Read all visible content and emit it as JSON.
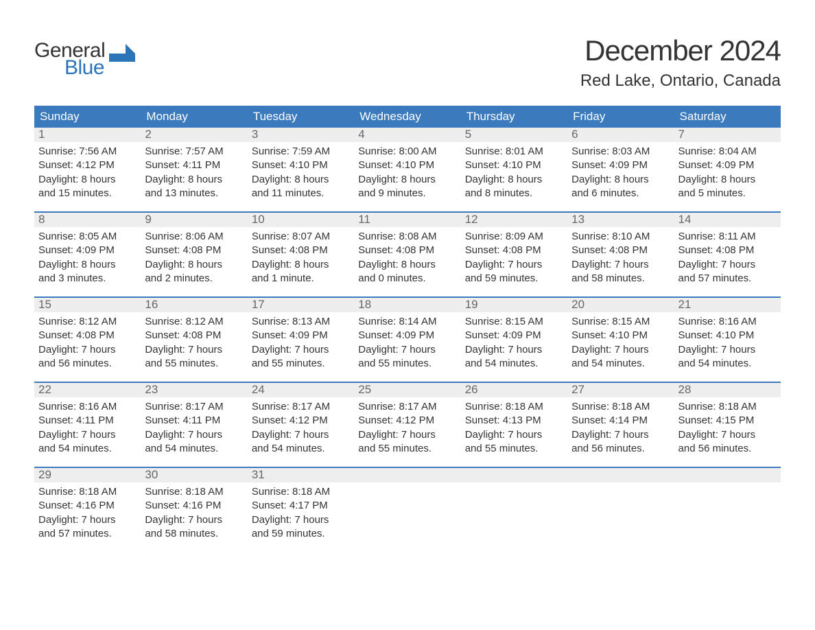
{
  "logo": {
    "general": "General",
    "blue": "Blue",
    "mark_color": "#2b74b8",
    "general_color": "#333333"
  },
  "title": "December 2024",
  "location": "Red Lake, Ontario, Canada",
  "colors": {
    "header_bg": "#3a7abd",
    "header_text": "#ffffff",
    "row_separator": "#3a7abd",
    "daynum_bg": "#eeeeee",
    "daynum_text": "#666666",
    "body_text": "#333333",
    "background": "#ffffff"
  },
  "typography": {
    "title_fontsize": 42,
    "location_fontsize": 24,
    "header_fontsize": 17,
    "daynum_fontsize": 17,
    "details_fontsize": 15,
    "font_family": "Arial"
  },
  "calendar": {
    "type": "table",
    "headers": [
      "Sunday",
      "Monday",
      "Tuesday",
      "Wednesday",
      "Thursday",
      "Friday",
      "Saturday"
    ],
    "weeks": [
      [
        {
          "day": "1",
          "sunrise": "Sunrise: 7:56 AM",
          "sunset": "Sunset: 4:12 PM",
          "daylight": "Daylight: 8 hours\nand 15 minutes."
        },
        {
          "day": "2",
          "sunrise": "Sunrise: 7:57 AM",
          "sunset": "Sunset: 4:11 PM",
          "daylight": "Daylight: 8 hours\nand 13 minutes."
        },
        {
          "day": "3",
          "sunrise": "Sunrise: 7:59 AM",
          "sunset": "Sunset: 4:10 PM",
          "daylight": "Daylight: 8 hours\nand 11 minutes."
        },
        {
          "day": "4",
          "sunrise": "Sunrise: 8:00 AM",
          "sunset": "Sunset: 4:10 PM",
          "daylight": "Daylight: 8 hours\nand 9 minutes."
        },
        {
          "day": "5",
          "sunrise": "Sunrise: 8:01 AM",
          "sunset": "Sunset: 4:10 PM",
          "daylight": "Daylight: 8 hours\nand 8 minutes."
        },
        {
          "day": "6",
          "sunrise": "Sunrise: 8:03 AM",
          "sunset": "Sunset: 4:09 PM",
          "daylight": "Daylight: 8 hours\nand 6 minutes."
        },
        {
          "day": "7",
          "sunrise": "Sunrise: 8:04 AM",
          "sunset": "Sunset: 4:09 PM",
          "daylight": "Daylight: 8 hours\nand 5 minutes."
        }
      ],
      [
        {
          "day": "8",
          "sunrise": "Sunrise: 8:05 AM",
          "sunset": "Sunset: 4:09 PM",
          "daylight": "Daylight: 8 hours\nand 3 minutes."
        },
        {
          "day": "9",
          "sunrise": "Sunrise: 8:06 AM",
          "sunset": "Sunset: 4:08 PM",
          "daylight": "Daylight: 8 hours\nand 2 minutes."
        },
        {
          "day": "10",
          "sunrise": "Sunrise: 8:07 AM",
          "sunset": "Sunset: 4:08 PM",
          "daylight": "Daylight: 8 hours\nand 1 minute."
        },
        {
          "day": "11",
          "sunrise": "Sunrise: 8:08 AM",
          "sunset": "Sunset: 4:08 PM",
          "daylight": "Daylight: 8 hours\nand 0 minutes."
        },
        {
          "day": "12",
          "sunrise": "Sunrise: 8:09 AM",
          "sunset": "Sunset: 4:08 PM",
          "daylight": "Daylight: 7 hours\nand 59 minutes."
        },
        {
          "day": "13",
          "sunrise": "Sunrise: 8:10 AM",
          "sunset": "Sunset: 4:08 PM",
          "daylight": "Daylight: 7 hours\nand 58 minutes."
        },
        {
          "day": "14",
          "sunrise": "Sunrise: 8:11 AM",
          "sunset": "Sunset: 4:08 PM",
          "daylight": "Daylight: 7 hours\nand 57 minutes."
        }
      ],
      [
        {
          "day": "15",
          "sunrise": "Sunrise: 8:12 AM",
          "sunset": "Sunset: 4:08 PM",
          "daylight": "Daylight: 7 hours\nand 56 minutes."
        },
        {
          "day": "16",
          "sunrise": "Sunrise: 8:12 AM",
          "sunset": "Sunset: 4:08 PM",
          "daylight": "Daylight: 7 hours\nand 55 minutes."
        },
        {
          "day": "17",
          "sunrise": "Sunrise: 8:13 AM",
          "sunset": "Sunset: 4:09 PM",
          "daylight": "Daylight: 7 hours\nand 55 minutes."
        },
        {
          "day": "18",
          "sunrise": "Sunrise: 8:14 AM",
          "sunset": "Sunset: 4:09 PM",
          "daylight": "Daylight: 7 hours\nand 55 minutes."
        },
        {
          "day": "19",
          "sunrise": "Sunrise: 8:15 AM",
          "sunset": "Sunset: 4:09 PM",
          "daylight": "Daylight: 7 hours\nand 54 minutes."
        },
        {
          "day": "20",
          "sunrise": "Sunrise: 8:15 AM",
          "sunset": "Sunset: 4:10 PM",
          "daylight": "Daylight: 7 hours\nand 54 minutes."
        },
        {
          "day": "21",
          "sunrise": "Sunrise: 8:16 AM",
          "sunset": "Sunset: 4:10 PM",
          "daylight": "Daylight: 7 hours\nand 54 minutes."
        }
      ],
      [
        {
          "day": "22",
          "sunrise": "Sunrise: 8:16 AM",
          "sunset": "Sunset: 4:11 PM",
          "daylight": "Daylight: 7 hours\nand 54 minutes."
        },
        {
          "day": "23",
          "sunrise": "Sunrise: 8:17 AM",
          "sunset": "Sunset: 4:11 PM",
          "daylight": "Daylight: 7 hours\nand 54 minutes."
        },
        {
          "day": "24",
          "sunrise": "Sunrise: 8:17 AM",
          "sunset": "Sunset: 4:12 PM",
          "daylight": "Daylight: 7 hours\nand 54 minutes."
        },
        {
          "day": "25",
          "sunrise": "Sunrise: 8:17 AM",
          "sunset": "Sunset: 4:12 PM",
          "daylight": "Daylight: 7 hours\nand 55 minutes."
        },
        {
          "day": "26",
          "sunrise": "Sunrise: 8:18 AM",
          "sunset": "Sunset: 4:13 PM",
          "daylight": "Daylight: 7 hours\nand 55 minutes."
        },
        {
          "day": "27",
          "sunrise": "Sunrise: 8:18 AM",
          "sunset": "Sunset: 4:14 PM",
          "daylight": "Daylight: 7 hours\nand 56 minutes."
        },
        {
          "day": "28",
          "sunrise": "Sunrise: 8:18 AM",
          "sunset": "Sunset: 4:15 PM",
          "daylight": "Daylight: 7 hours\nand 56 minutes."
        }
      ],
      [
        {
          "day": "29",
          "sunrise": "Sunrise: 8:18 AM",
          "sunset": "Sunset: 4:16 PM",
          "daylight": "Daylight: 7 hours\nand 57 minutes."
        },
        {
          "day": "30",
          "sunrise": "Sunrise: 8:18 AM",
          "sunset": "Sunset: 4:16 PM",
          "daylight": "Daylight: 7 hours\nand 58 minutes."
        },
        {
          "day": "31",
          "sunrise": "Sunrise: 8:18 AM",
          "sunset": "Sunset: 4:17 PM",
          "daylight": "Daylight: 7 hours\nand 59 minutes."
        },
        null,
        null,
        null,
        null
      ]
    ]
  }
}
